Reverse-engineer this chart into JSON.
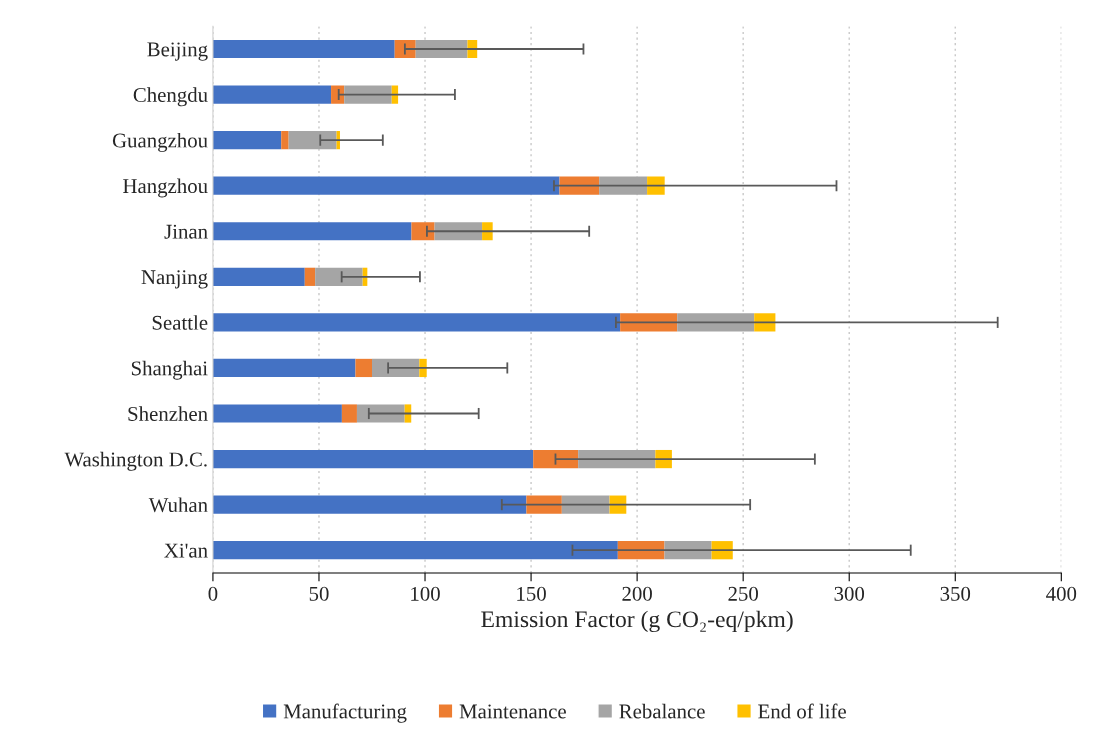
{
  "chart_data": {
    "type": "bar",
    "orientation": "horizontal",
    "stacked": true,
    "xlabel": "Emission Factor (g CO₂-eq/pkm)",
    "categories": [
      "Beijing",
      "Chengdu",
      "Guangzhou",
      "Hangzhou",
      "Jinan",
      "Nanjing",
      "Seattle",
      "Shanghai",
      "Shenzhen",
      "Washington D.C.",
      "Wuhan",
      "Xi'an"
    ],
    "series": [
      {
        "name": "Manufacturing",
        "color": "#4472c4",
        "values": [
          85.7,
          55.7,
          32.2,
          163.4,
          93.6,
          43.3,
          192.0,
          67.2,
          60.8,
          151.0,
          147.8,
          190.9
        ]
      },
      {
        "name": "Maintenance",
        "color": "#ed7d31",
        "values": [
          9.9,
          6.2,
          3.5,
          18.7,
          10.9,
          4.9,
          26.9,
          7.8,
          7.1,
          21.2,
          16.7,
          22.0
        ]
      },
      {
        "name": "Rebalance",
        "color": "#a5a5a5",
        "values": [
          24.4,
          22.4,
          22.6,
          22.6,
          22.4,
          22.4,
          36.3,
          22.3,
          22.5,
          36.4,
          22.5,
          22.2
        ]
      },
      {
        "name": "End of life",
        "color": "#ffc000",
        "values": [
          4.6,
          3.0,
          1.6,
          8.3,
          5.0,
          2.2,
          10.0,
          3.5,
          3.1,
          7.8,
          7.9,
          10.0
        ],
        "errors": [
          [
            90.5,
            174.7
          ],
          [
            59.3,
            114.1
          ],
          [
            50.6,
            80.1
          ],
          [
            160.8,
            294.0
          ],
          [
            100.9,
            177.4
          ],
          [
            60.7,
            97.6
          ],
          [
            190.0,
            370.0
          ],
          [
            82.6,
            138.8
          ],
          [
            73.5,
            125.3
          ],
          [
            161.5,
            283.8
          ],
          [
            136.2,
            253.3
          ],
          [
            169.5,
            329.0
          ]
        ]
      }
    ],
    "xlim": [
      0,
      400
    ],
    "xticks": [
      0,
      50,
      100,
      150,
      200,
      250,
      300,
      350,
      400
    ],
    "grid": "x",
    "legend": "bottom"
  }
}
